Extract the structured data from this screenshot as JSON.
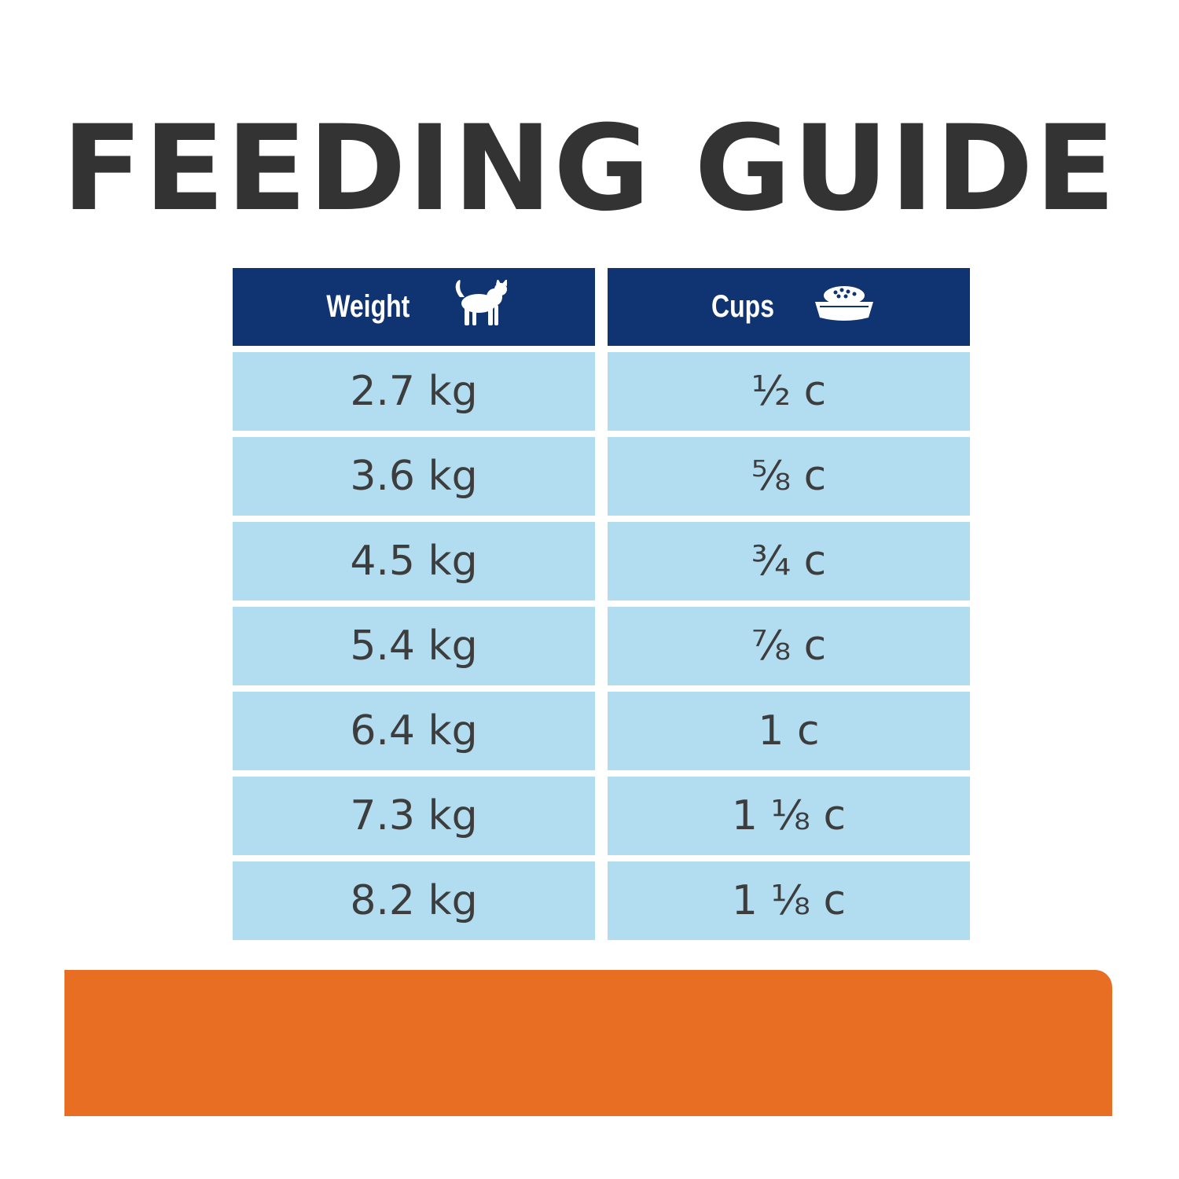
{
  "title": "FEEDING GUIDE",
  "colors": {
    "header_bg": "#0f3471",
    "cell_bg": "#b2ddf0",
    "title_text": "#333333",
    "cell_text": "#3d3d3d",
    "accent_bar": "#e86e24"
  },
  "table": {
    "columns": [
      {
        "label": "Weight",
        "icon": "cat-icon"
      },
      {
        "label": "Cups",
        "icon": "food-bowl-icon"
      }
    ],
    "rows": [
      {
        "weight": "2.7 kg",
        "cups": "½ c"
      },
      {
        "weight": "3.6 kg",
        "cups": "⅝ c"
      },
      {
        "weight": "4.5 kg",
        "cups": "¾ c"
      },
      {
        "weight": "5.4 kg",
        "cups": "⅞ c"
      },
      {
        "weight": "6.4 kg",
        "cups": "1 c"
      },
      {
        "weight": "7.3 kg",
        "cups": "1 ⅛ c"
      },
      {
        "weight": "8.2 kg",
        "cups": "1 ⅛ c"
      }
    ]
  }
}
